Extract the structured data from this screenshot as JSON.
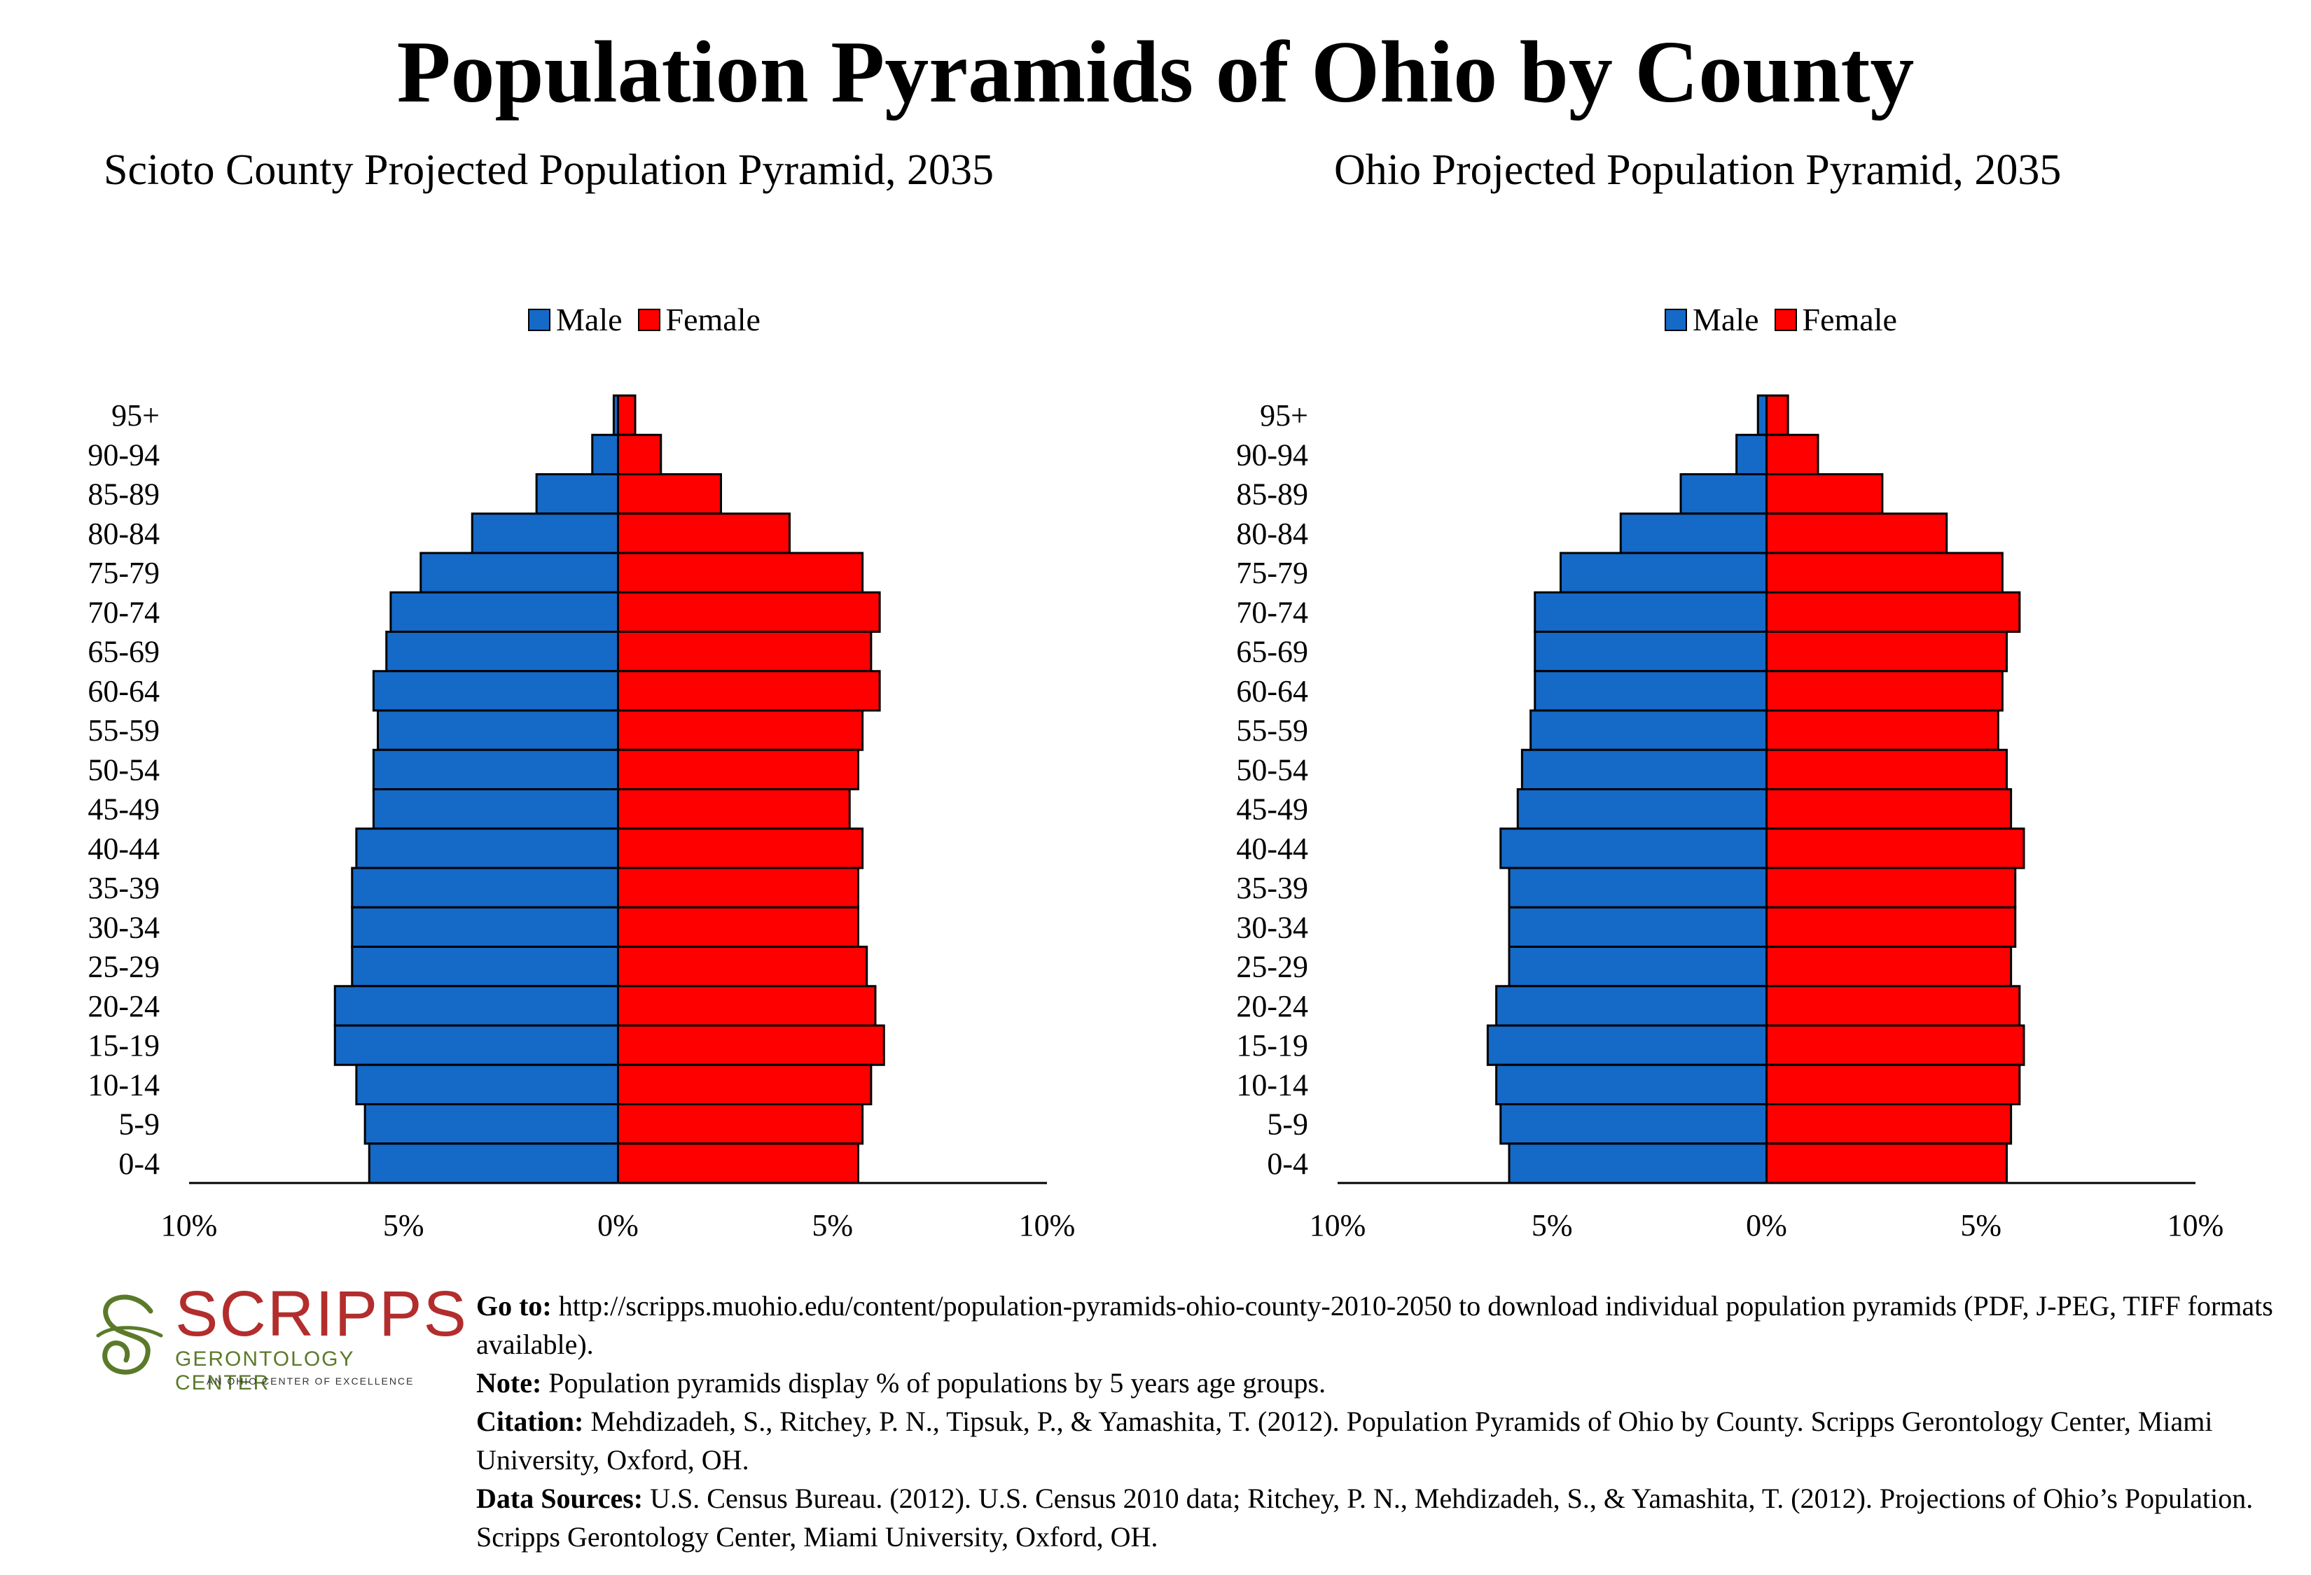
{
  "title": "Population Pyramids of Ohio by County",
  "legend": {
    "male": "Male",
    "female": "Female"
  },
  "colors": {
    "male": "#1569c7",
    "female": "#ff0000",
    "outline": "#000000"
  },
  "chart_data": [
    {
      "type": "bar",
      "title": "Scioto County Projected Population Pyramid, 2035",
      "categories": [
        "95+",
        "90-94",
        "85-89",
        "80-84",
        "75-79",
        "70-74",
        "65-69",
        "60-64",
        "55-59",
        "50-54",
        "45-49",
        "40-44",
        "35-39",
        "30-34",
        "25-29",
        "20-24",
        "15-19",
        "10-14",
        "5-9",
        "0-4"
      ],
      "series": [
        {
          "name": "Male",
          "values": [
            0.1,
            0.6,
            1.9,
            3.4,
            4.6,
            5.3,
            5.4,
            5.7,
            5.6,
            5.7,
            5.7,
            6.1,
            6.2,
            6.2,
            6.2,
            6.6,
            6.6,
            6.1,
            5.9,
            5.8
          ]
        },
        {
          "name": "Female",
          "values": [
            0.4,
            1.0,
            2.4,
            4.0,
            5.7,
            6.1,
            5.9,
            6.1,
            5.7,
            5.6,
            5.4,
            5.7,
            5.6,
            5.6,
            5.8,
            6.0,
            6.2,
            5.9,
            5.7,
            5.6
          ]
        }
      ],
      "xlim": [
        -10,
        10
      ],
      "xticks": [
        "10%",
        "5%",
        "0%",
        "5%",
        "10%"
      ]
    },
    {
      "type": "bar",
      "title": "Ohio Projected Population Pyramid, 2035",
      "categories": [
        "95+",
        "90-94",
        "85-89",
        "80-84",
        "75-79",
        "70-74",
        "65-69",
        "60-64",
        "55-59",
        "50-54",
        "45-49",
        "40-44",
        "35-39",
        "30-34",
        "25-29",
        "20-24",
        "15-19",
        "10-14",
        "5-9",
        "0-4"
      ],
      "series": [
        {
          "name": "Male",
          "values": [
            0.2,
            0.7,
            2.0,
            3.4,
            4.8,
            5.4,
            5.4,
            5.4,
            5.5,
            5.7,
            5.8,
            6.2,
            6.0,
            6.0,
            6.0,
            6.3,
            6.5,
            6.3,
            6.2,
            6.0
          ]
        },
        {
          "name": "Female",
          "values": [
            0.5,
            1.2,
            2.7,
            4.2,
            5.5,
            5.9,
            5.6,
            5.5,
            5.4,
            5.6,
            5.7,
            6.0,
            5.8,
            5.8,
            5.7,
            5.9,
            6.0,
            5.9,
            5.7,
            5.6
          ]
        }
      ],
      "xlim": [
        -10,
        10
      ],
      "xticks": [
        "10%",
        "5%",
        "0%",
        "5%",
        "10%"
      ]
    }
  ],
  "logo": {
    "word": "SCRIPPS",
    "sub": "GERONTOLOGY CENTER",
    "tag": "AN OHIO CENTER OF EXCELLENCE"
  },
  "notes": {
    "goto_label": "Go to:",
    "goto_text": "http://scripps.muohio.edu/content/population-pyramids-ohio-county-2010-2050 to download individual population pyramids (PDF, J-PEG, TIFF formats available).",
    "note_label": "Note:",
    "note_text": "Population pyramids display % of populations by 5 years age groups.",
    "citation_label": "Citation:",
    "citation_text": "Mehdizadeh, S., Ritchey, P. N., Tipsuk, P., & Yamashita, T. (2012). Population Pyramids of Ohio by County. Scripps Gerontology Center, Miami University, Oxford, OH.",
    "sources_label": "Data Sources:",
    "sources_text": "U.S. Census Bureau. (2012). U.S. Census 2010 data; Ritchey, P. N., Mehdizadeh, S., & Yamashita, T. (2012). Projections of Ohio’s Population. Scripps Gerontology Center, Miami University, Oxford, OH."
  }
}
